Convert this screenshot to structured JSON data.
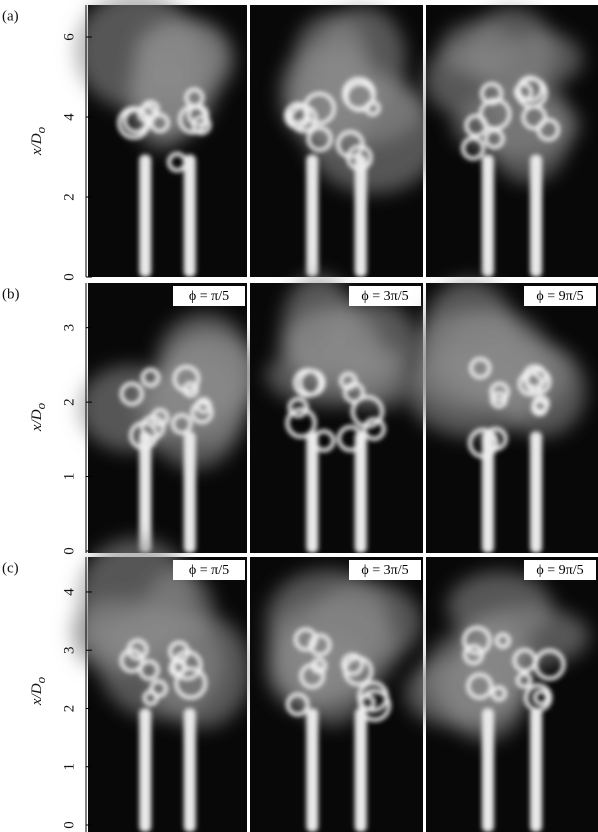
{
  "rows": [
    {
      "label": "(a)",
      "ylabel": {
        "text": "x/D",
        "sub": "o"
      },
      "ylim": [
        0,
        6.8
      ],
      "yticks": [
        0,
        2,
        4,
        6
      ]
    },
    {
      "label": "(b)",
      "ylabel": {
        "text": "x/D",
        "sub": "o"
      },
      "ylim": [
        0,
        3.6
      ],
      "yticks": [
        0,
        1,
        2,
        3
      ],
      "phases": [
        "ϕ = π/5",
        "ϕ = 3π/5",
        "ϕ = 9π/5"
      ]
    },
    {
      "label": "(c)",
      "ylabel": {
        "text": "x/D",
        "sub": "o"
      },
      "ylim": [
        0,
        4.6
      ],
      "yticks": [
        0,
        1,
        2,
        3,
        4
      ],
      "phases": [
        "ϕ = π/5",
        "ϕ = 3π/5",
        "ϕ = 9π/5"
      ]
    }
  ]
}
